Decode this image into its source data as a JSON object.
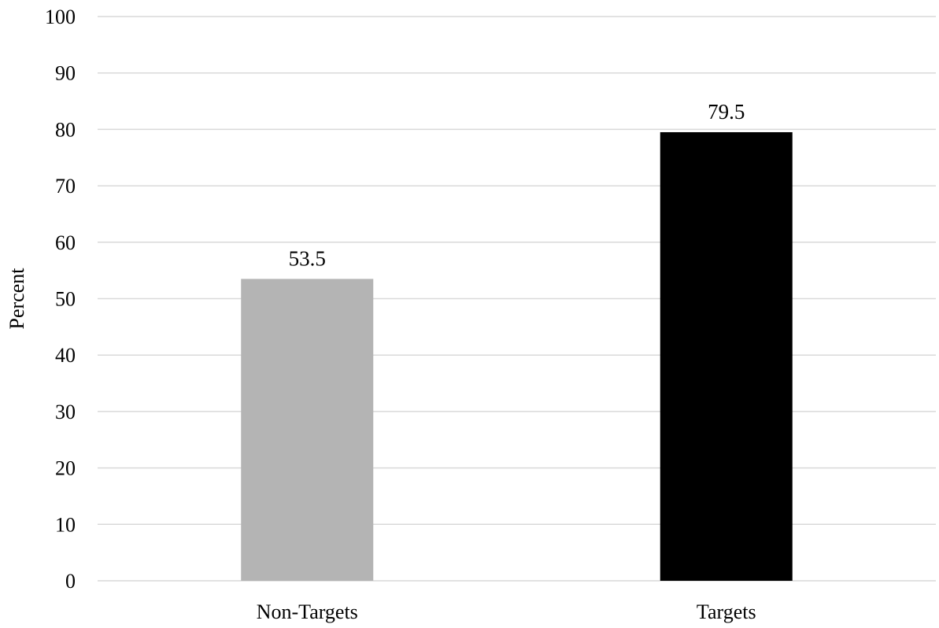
{
  "chart_data": {
    "type": "bar",
    "title": "",
    "xlabel": "",
    "ylabel": "Percent",
    "ylim": [
      0,
      100
    ],
    "yticks": [
      0,
      10,
      20,
      30,
      40,
      50,
      60,
      70,
      80,
      90,
      100
    ],
    "categories": [
      "Non-Targets",
      "Targets"
    ],
    "values": [
      53.5,
      79.5
    ],
    "data_labels": [
      "53.5",
      "79.5"
    ],
    "colors": [
      "#b4b4b4",
      "#000000"
    ],
    "grid": true,
    "legend": "none"
  }
}
